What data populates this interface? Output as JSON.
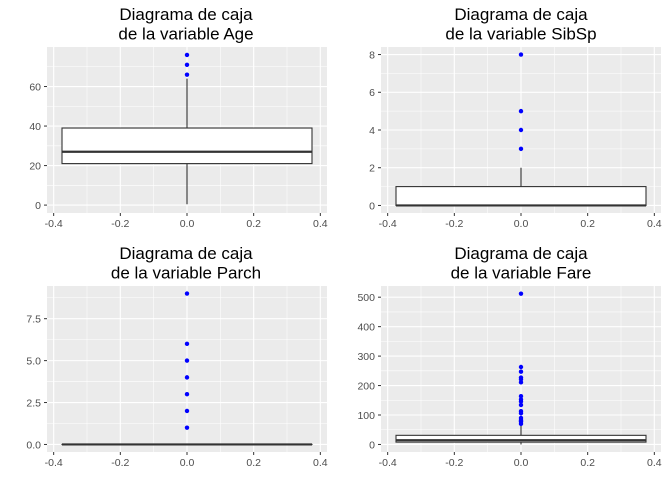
{
  "chart_data": [
    {
      "type": "boxplot",
      "title": [
        "Diagrama de caja",
        "de la variable Age"
      ],
      "xlim": [
        -0.42,
        0.42
      ],
      "ylim": [
        -4,
        80
      ],
      "x_ticks": [
        -0.4,
        -0.2,
        0.0,
        0.2,
        0.4
      ],
      "x_tick_labels": [
        "-0.4",
        "-0.2",
        "0.0",
        "0.2",
        "0.4"
      ],
      "y_ticks": [
        0,
        20,
        40,
        60
      ],
      "y_tick_labels": [
        "0",
        "20",
        "40",
        "60"
      ],
      "box": {
        "x_center": 0,
        "half_width": 0.375,
        "whisker_low": 0.42,
        "q1": 21,
        "median": 27,
        "q3": 39,
        "whisker_high": 64
      },
      "outliers": [
        66,
        71,
        76
      ],
      "outlier_color": "#0000ff",
      "grid": true,
      "panel_background": "#ebebeb"
    },
    {
      "type": "boxplot",
      "title": [
        "Diagrama de caja",
        "de la variable SibSp"
      ],
      "xlim": [
        -0.42,
        0.42
      ],
      "ylim": [
        -0.4,
        8.4
      ],
      "x_ticks": [
        -0.4,
        -0.2,
        0.0,
        0.2,
        0.4
      ],
      "x_tick_labels": [
        "-0.4",
        "-0.2",
        "0.0",
        "0.2",
        "0.4"
      ],
      "y_ticks": [
        0,
        2,
        4,
        6,
        8
      ],
      "y_tick_labels": [
        "0",
        "2",
        "4",
        "6",
        "8"
      ],
      "box": {
        "x_center": 0,
        "half_width": 0.375,
        "whisker_low": 0,
        "q1": 0,
        "median": 0,
        "q3": 1,
        "whisker_high": 2
      },
      "outliers": [
        3,
        4,
        5,
        8
      ],
      "outlier_color": "#0000ff",
      "grid": true,
      "panel_background": "#ebebeb"
    },
    {
      "type": "boxplot",
      "title": [
        "Diagrama de caja",
        "de la variable Parch"
      ],
      "xlim": [
        -0.42,
        0.42
      ],
      "ylim": [
        -0.45,
        9.45
      ],
      "x_ticks": [
        -0.4,
        -0.2,
        0.0,
        0.2,
        0.4
      ],
      "x_tick_labels": [
        "-0.4",
        "-0.2",
        "0.0",
        "0.2",
        "0.4"
      ],
      "y_ticks": [
        0,
        2.5,
        5,
        7.5
      ],
      "y_tick_labels": [
        "0.0",
        "2.5",
        "5.0",
        "7.5"
      ],
      "box": {
        "x_center": 0,
        "half_width": 0.375,
        "whisker_low": 0,
        "q1": 0,
        "median": 0,
        "q3": 0,
        "whisker_high": 0
      },
      "outliers": [
        1,
        2,
        3,
        4,
        5,
        6,
        9
      ],
      "outlier_color": "#0000ff",
      "grid": true,
      "panel_background": "#ebebeb"
    },
    {
      "type": "boxplot",
      "title": [
        "Diagrama de caja",
        "de la variable Fare"
      ],
      "xlim": [
        -0.42,
        0.42
      ],
      "ylim": [
        -25.6,
        538
      ],
      "x_ticks": [
        -0.4,
        -0.2,
        0.0,
        0.2,
        0.4
      ],
      "x_tick_labels": [
        "-0.4",
        "-0.2",
        "0.0",
        "0.2",
        "0.4"
      ],
      "y_ticks": [
        0,
        100,
        200,
        300,
        400,
        500
      ],
      "y_tick_labels": [
        "0",
        "100",
        "200",
        "300",
        "400",
        "500"
      ],
      "box": {
        "x_center": 0,
        "half_width": 0.375,
        "whisker_low": 0,
        "q1": 8,
        "median": 14.5,
        "q3": 31,
        "whisker_high": 65
      },
      "outliers": [
        70,
        77,
        80,
        83,
        90,
        106,
        113,
        134,
        146,
        153,
        164,
        211,
        221,
        227,
        247,
        263,
        512
      ],
      "outlier_color": "#0000ff",
      "grid": true,
      "panel_background": "#ebebeb"
    }
  ]
}
